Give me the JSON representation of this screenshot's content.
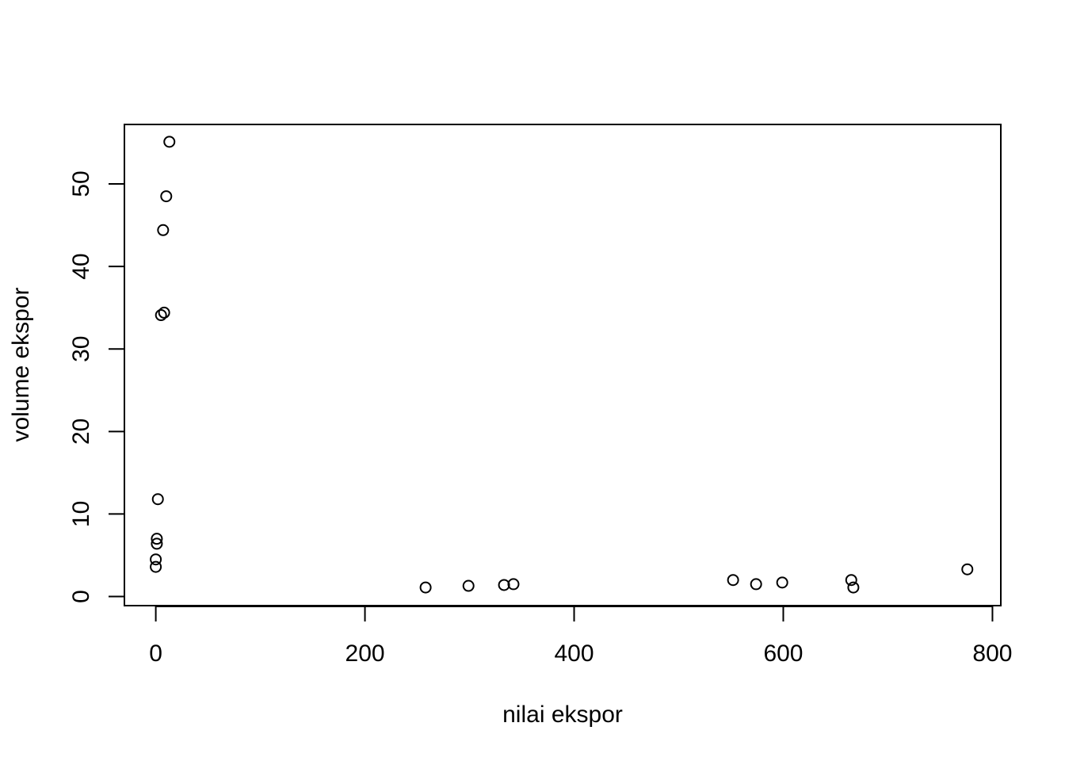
{
  "chart_data": {
    "type": "scatter",
    "title": "",
    "xlabel": "nilai ekspor",
    "ylabel": "volume ekspor",
    "xlim": [
      -30,
      808
    ],
    "ylim": [
      -1.1,
      57.2
    ],
    "xticks": [
      0,
      200,
      400,
      600,
      800
    ],
    "yticks": [
      0,
      10,
      20,
      30,
      40,
      50
    ],
    "xtick_labels": [
      "0",
      "200",
      "400",
      "600",
      "800"
    ],
    "ytick_labels": [
      "0",
      "10",
      "20",
      "30",
      "40",
      "50"
    ],
    "grid": false,
    "marker": "open-circle",
    "color": "#000000",
    "points": [
      {
        "x": 13,
        "y": 55.1
      },
      {
        "x": 10,
        "y": 48.5
      },
      {
        "x": 7,
        "y": 44.4
      },
      {
        "x": 8,
        "y": 34.4
      },
      {
        "x": 5,
        "y": 34.1
      },
      {
        "x": 2,
        "y": 11.8
      },
      {
        "x": 1,
        "y": 7.0
      },
      {
        "x": 1,
        "y": 6.4
      },
      {
        "x": 0,
        "y": 4.5
      },
      {
        "x": 0,
        "y": 3.6
      },
      {
        "x": 258,
        "y": 1.1
      },
      {
        "x": 299,
        "y": 1.3
      },
      {
        "x": 333,
        "y": 1.4
      },
      {
        "x": 342,
        "y": 1.5
      },
      {
        "x": 552,
        "y": 2.0
      },
      {
        "x": 574,
        "y": 1.5
      },
      {
        "x": 599,
        "y": 1.7
      },
      {
        "x": 665,
        "y": 2.0
      },
      {
        "x": 667,
        "y": 1.1
      },
      {
        "x": 776,
        "y": 3.3
      }
    ]
  }
}
